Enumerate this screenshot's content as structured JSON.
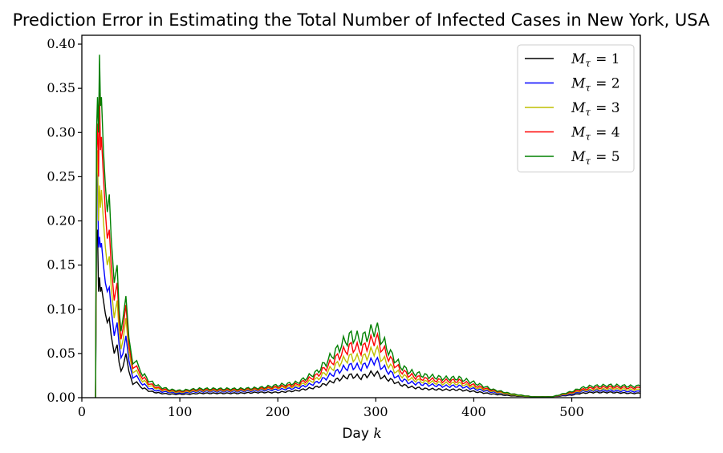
{
  "chart_data": {
    "type": "line",
    "title": "Prediction Error in Estimating the Total Number of Infected Cases in New York, USA",
    "xlabel": "Day k",
    "xlabel_prefix": "Day",
    "xlabel_var": "k",
    "ylabel": "",
    "xlim": [
      0,
      570
    ],
    "ylim": [
      0,
      0.41
    ],
    "xticks": [
      0,
      100,
      200,
      300,
      400,
      500
    ],
    "yticks": [
      "0.00",
      "0.05",
      "0.10",
      "0.15",
      "0.20",
      "0.25",
      "0.30",
      "0.35",
      "0.40"
    ],
    "legend_position": "top-right",
    "series": [
      {
        "name": "M_τ = 1",
        "legend_var": "M",
        "legend_sub": "τ",
        "legend_value": "= 1",
        "color": "#000000",
        "x": [
          14,
          15,
          16,
          17,
          18,
          19,
          20,
          22,
          24,
          26,
          28,
          30,
          33,
          36,
          38,
          40,
          42,
          45,
          48,
          52,
          56,
          60,
          70,
          80,
          90,
          100,
          110,
          120,
          140,
          160,
          180,
          200,
          220,
          240,
          255,
          265,
          275,
          285,
          295,
          300,
          305,
          315,
          325,
          335,
          350,
          370,
          385,
          400,
          420,
          440,
          460,
          480,
          500,
          510,
          520,
          540,
          560,
          570
        ],
        "y": [
          0.0,
          0.18,
          0.19,
          0.12,
          0.136,
          0.12,
          0.125,
          0.11,
          0.095,
          0.085,
          0.09,
          0.07,
          0.05,
          0.06,
          0.04,
          0.03,
          0.035,
          0.05,
          0.03,
          0.015,
          0.018,
          0.012,
          0.007,
          0.005,
          0.004,
          0.004,
          0.004,
          0.005,
          0.005,
          0.005,
          0.006,
          0.006,
          0.008,
          0.012,
          0.018,
          0.022,
          0.025,
          0.023,
          0.027,
          0.028,
          0.024,
          0.02,
          0.015,
          0.012,
          0.01,
          0.009,
          0.009,
          0.007,
          0.004,
          0.002,
          0.001,
          0.001,
          0.003,
          0.005,
          0.006,
          0.006,
          0.005,
          0.005
        ]
      },
      {
        "name": "M_τ = 2",
        "legend_var": "M",
        "legend_sub": "τ",
        "legend_value": "= 2",
        "color": "#0000ff",
        "x": [
          14,
          15,
          16,
          17,
          18,
          19,
          20,
          22,
          24,
          26,
          28,
          30,
          33,
          36,
          38,
          40,
          42,
          45,
          48,
          52,
          56,
          60,
          70,
          80,
          90,
          100,
          110,
          120,
          140,
          160,
          180,
          200,
          220,
          240,
          255,
          265,
          275,
          285,
          295,
          300,
          305,
          315,
          325,
          335,
          350,
          370,
          385,
          400,
          420,
          440,
          460,
          480,
          500,
          510,
          520,
          540,
          560,
          570
        ],
        "y": [
          0.0,
          0.24,
          0.255,
          0.17,
          0.182,
          0.17,
          0.175,
          0.15,
          0.13,
          0.12,
          0.125,
          0.1,
          0.07,
          0.085,
          0.06,
          0.045,
          0.05,
          0.07,
          0.042,
          0.022,
          0.025,
          0.017,
          0.01,
          0.007,
          0.006,
          0.005,
          0.006,
          0.007,
          0.007,
          0.007,
          0.008,
          0.009,
          0.011,
          0.017,
          0.026,
          0.032,
          0.036,
          0.034,
          0.04,
          0.043,
          0.036,
          0.028,
          0.021,
          0.017,
          0.015,
          0.013,
          0.013,
          0.01,
          0.006,
          0.003,
          0.001,
          0.001,
          0.004,
          0.007,
          0.008,
          0.008,
          0.007,
          0.007
        ]
      },
      {
        "name": "M_τ = 3",
        "legend_var": "M",
        "legend_sub": "τ",
        "legend_value": "= 3",
        "color": "#bfbf00",
        "x": [
          14,
          15,
          16,
          17,
          18,
          19,
          20,
          22,
          24,
          26,
          28,
          30,
          33,
          36,
          38,
          40,
          42,
          45,
          48,
          52,
          56,
          60,
          70,
          80,
          90,
          100,
          110,
          120,
          140,
          160,
          180,
          200,
          220,
          240,
          255,
          265,
          275,
          285,
          295,
          300,
          305,
          315,
          325,
          335,
          350,
          370,
          385,
          400,
          420,
          440,
          460,
          480,
          500,
          510,
          520,
          540,
          560,
          570
        ],
        "y": [
          0.0,
          0.25,
          0.28,
          0.2,
          0.24,
          0.215,
          0.235,
          0.2,
          0.17,
          0.15,
          0.16,
          0.125,
          0.09,
          0.11,
          0.075,
          0.055,
          0.065,
          0.09,
          0.052,
          0.028,
          0.031,
          0.021,
          0.013,
          0.009,
          0.007,
          0.006,
          0.007,
          0.008,
          0.008,
          0.008,
          0.009,
          0.011,
          0.013,
          0.021,
          0.033,
          0.041,
          0.046,
          0.043,
          0.051,
          0.055,
          0.046,
          0.035,
          0.026,
          0.021,
          0.018,
          0.016,
          0.016,
          0.012,
          0.007,
          0.003,
          0.001,
          0.001,
          0.005,
          0.008,
          0.009,
          0.01,
          0.009,
          0.009
        ]
      },
      {
        "name": "M_τ = 4",
        "legend_var": "M",
        "legend_sub": "τ",
        "legend_value": "= 4",
        "color": "#ff0000",
        "x": [
          14,
          15,
          16,
          17,
          18,
          19,
          20,
          22,
          24,
          26,
          28,
          30,
          33,
          36,
          38,
          40,
          42,
          45,
          48,
          52,
          56,
          60,
          70,
          80,
          90,
          100,
          110,
          120,
          140,
          160,
          180,
          200,
          220,
          240,
          255,
          265,
          275,
          285,
          295,
          300,
          305,
          315,
          325,
          335,
          350,
          370,
          385,
          400,
          420,
          440,
          460,
          480,
          500,
          510,
          520,
          540,
          560,
          570
        ],
        "y": [
          0.0,
          0.28,
          0.31,
          0.25,
          0.345,
          0.28,
          0.295,
          0.25,
          0.21,
          0.18,
          0.19,
          0.15,
          0.11,
          0.13,
          0.09,
          0.066,
          0.078,
          0.105,
          0.06,
          0.033,
          0.036,
          0.025,
          0.015,
          0.01,
          0.008,
          0.007,
          0.008,
          0.009,
          0.009,
          0.009,
          0.01,
          0.012,
          0.015,
          0.025,
          0.04,
          0.05,
          0.058,
          0.054,
          0.063,
          0.068,
          0.058,
          0.043,
          0.031,
          0.025,
          0.021,
          0.019,
          0.019,
          0.014,
          0.008,
          0.004,
          0.001,
          0.001,
          0.006,
          0.009,
          0.011,
          0.012,
          0.011,
          0.011
        ]
      },
      {
        "name": "M_τ = 5",
        "legend_var": "M",
        "legend_sub": "τ",
        "legend_value": "= 5",
        "color": "#008000",
        "x": [
          14,
          15,
          16,
          17,
          18,
          19,
          20,
          22,
          24,
          26,
          28,
          30,
          33,
          36,
          38,
          40,
          42,
          45,
          48,
          52,
          56,
          60,
          70,
          80,
          90,
          100,
          110,
          120,
          140,
          160,
          180,
          200,
          220,
          240,
          255,
          265,
          275,
          285,
          295,
          300,
          305,
          315,
          325,
          335,
          350,
          370,
          385,
          400,
          420,
          440,
          460,
          480,
          500,
          510,
          520,
          540,
          560,
          570
        ],
        "y": [
          0.0,
          0.3,
          0.34,
          0.3,
          0.388,
          0.33,
          0.34,
          0.28,
          0.24,
          0.21,
          0.23,
          0.18,
          0.13,
          0.15,
          0.1,
          0.075,
          0.09,
          0.115,
          0.068,
          0.038,
          0.042,
          0.029,
          0.018,
          0.012,
          0.009,
          0.008,
          0.009,
          0.01,
          0.01,
          0.01,
          0.011,
          0.014,
          0.017,
          0.029,
          0.047,
          0.06,
          0.07,
          0.066,
          0.074,
          0.08,
          0.068,
          0.05,
          0.036,
          0.029,
          0.025,
          0.022,
          0.022,
          0.017,
          0.009,
          0.004,
          0.001,
          0.001,
          0.007,
          0.011,
          0.013,
          0.014,
          0.013,
          0.013
        ]
      }
    ]
  }
}
